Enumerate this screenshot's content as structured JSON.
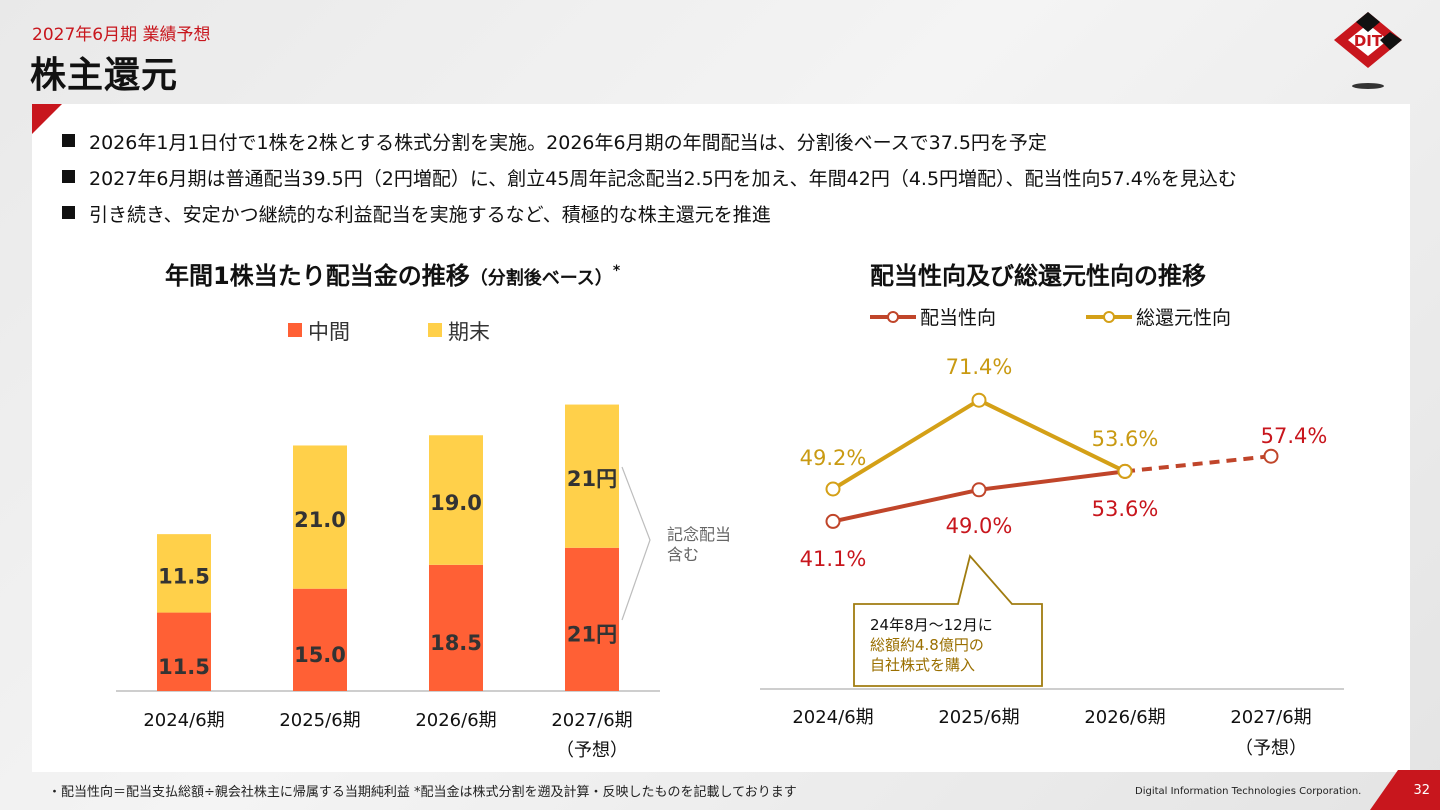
{
  "header": {
    "subtitle": "2027年6月期 業績予想",
    "title": "株主還元"
  },
  "brand": {
    "logo_text": "DIT",
    "accent": "#c8161d"
  },
  "bullets": [
    "2026年1月1日付で1株を2株とする株式分割を実施。2026年6月期の年間配当は、分割後ベースで37.5円を予定",
    "2027年6月期は普通配当39.5円（2円増配）に、創立45周年記念配当2.5円を加え、年間42円（4.5円増配）、配当性向57.4%を見込む",
    "引き続き、安定かつ継続的な利益配当を実施するなど、積極的な株主還元を推進"
  ],
  "chart_data": [
    {
      "type": "bar",
      "stacked": true,
      "title": "年間1株当たり配当金の推移",
      "title_note": "（分割後ベース）",
      "title_mark": "*",
      "categories": [
        "2024/6期",
        "2025/6期",
        "2026/6期",
        "2027/6期"
      ],
      "category_notes": [
        "",
        "",
        "",
        "（予想）"
      ],
      "series": [
        {
          "name": "中間",
          "color": "#ff6035",
          "values": [
            11.5,
            15.0,
            18.5,
            21
          ],
          "labels": [
            "11.5",
            "15.0",
            "18.5",
            "21円"
          ]
        },
        {
          "name": "期末",
          "color": "#ffd04a",
          "values": [
            11.5,
            21.0,
            19.0,
            21
          ],
          "labels": [
            "11.5",
            "21.0",
            "19.0",
            "21円"
          ]
        }
      ],
      "annotation": "記念配当\n含む",
      "ylim": [
        0,
        45
      ]
    },
    {
      "type": "line",
      "title": "配当性向及び総還元性向の推移",
      "categories": [
        "2024/6期",
        "2025/6期",
        "2026/6期",
        "2027/6期"
      ],
      "category_notes": [
        "",
        "",
        "",
        "（予想）"
      ],
      "series": [
        {
          "name": "配当性向",
          "color": "#c0452a",
          "values": [
            41.1,
            49.0,
            53.6,
            57.4
          ],
          "labels": [
            "41.1%",
            "49.0%",
            "53.6%",
            "57.4%"
          ],
          "forecast_from_index": 2
        },
        {
          "name": "総還元性向",
          "color": "#d4a017",
          "values": [
            49.2,
            71.4,
            53.6,
            null
          ],
          "labels": [
            "49.2%",
            "71.4%",
            "53.6%",
            ""
          ]
        }
      ],
      "callout": {
        "lines": [
          "24年8月～12月に",
          "総額約4.8億円の",
          "自社株式を購入"
        ]
      },
      "ylim": [
        30,
        80
      ]
    }
  ],
  "footer": {
    "note": "・配当性向＝配当支払総額÷親会社株主に帰属する当期純利益 *配当金は株式分割を遡及計算・反映したものを記載しております",
    "company": "Digital Information Technologies Corporation.",
    "page": "32"
  }
}
